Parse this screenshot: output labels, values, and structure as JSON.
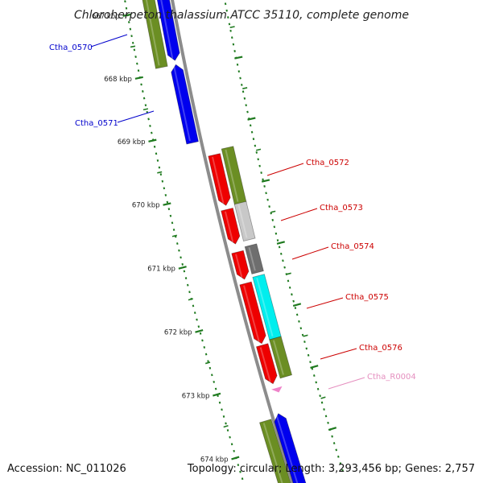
{
  "title": "Chloroherpeton thalassium ATCC 35110, complete genome",
  "accession": "Accession: NC_011026",
  "topology": "Topology: circular; Length: 3,293,456 bp; Genes: 2,757",
  "ticks": [
    "667 kbp",
    "668 kbp",
    "669 kbp",
    "670 kbp",
    "671 kbp",
    "672 kbp",
    "673 kbp",
    "674 kbp"
  ],
  "gene_labels": [
    {
      "text": "Ctha_0570",
      "color": "#0000cc"
    },
    {
      "text": "Ctha_0571",
      "color": "#0000cc"
    },
    {
      "text": "Ctha_0572",
      "color": "#cc0000"
    },
    {
      "text": "Ctha_0573",
      "color": "#cc0000"
    },
    {
      "text": "Ctha_0574",
      "color": "#cc0000"
    },
    {
      "text": "Ctha_0575",
      "color": "#cc0000"
    },
    {
      "text": "Ctha_0576",
      "color": "#cc0000"
    },
    {
      "text": "Ctha_R0004",
      "color": "#e58fbf"
    }
  ],
  "colors": {
    "backbone": "#8c8c8c",
    "tick": "#1f7a1f",
    "blue": "#0000ee",
    "red": "#ee0000",
    "olive": "#6b8e23",
    "lightgray": "#c8c8c8",
    "darkgray": "#6e6e6e",
    "cyan": "#00eeee",
    "pink": "#ee82c9"
  }
}
